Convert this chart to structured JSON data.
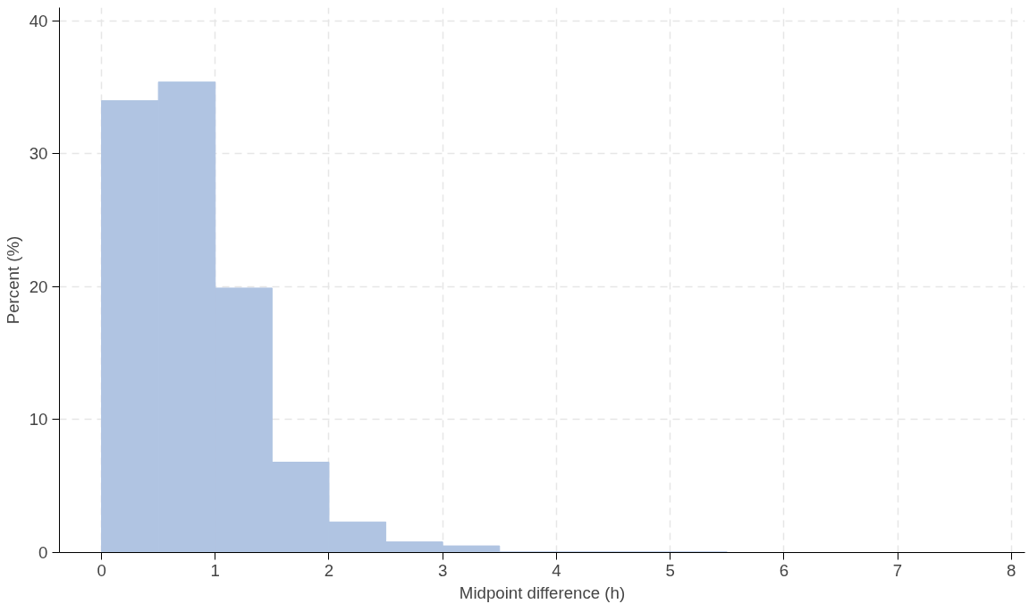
{
  "chart_data": {
    "type": "histogram",
    "xlabel": "Midpoint difference (h)",
    "ylabel": "Percent (%)",
    "bins": [
      0,
      0.5,
      1,
      1.5,
      2,
      2.5,
      3,
      3.5,
      4,
      4.5,
      5,
      5.5
    ],
    "values": [
      34.0,
      35.4,
      19.9,
      6.8,
      2.3,
      0.8,
      0.5,
      0.05,
      0.05,
      0.05,
      0.05
    ],
    "color": "#b0c4e2",
    "xlim": [
      -0.37,
      8.12
    ],
    "ylim": [
      0,
      41
    ],
    "xticks": [
      0,
      1,
      2,
      3,
      4,
      5,
      6,
      7,
      8
    ],
    "yticks": [
      0,
      10,
      20,
      30,
      40
    ],
    "grid": true
  }
}
